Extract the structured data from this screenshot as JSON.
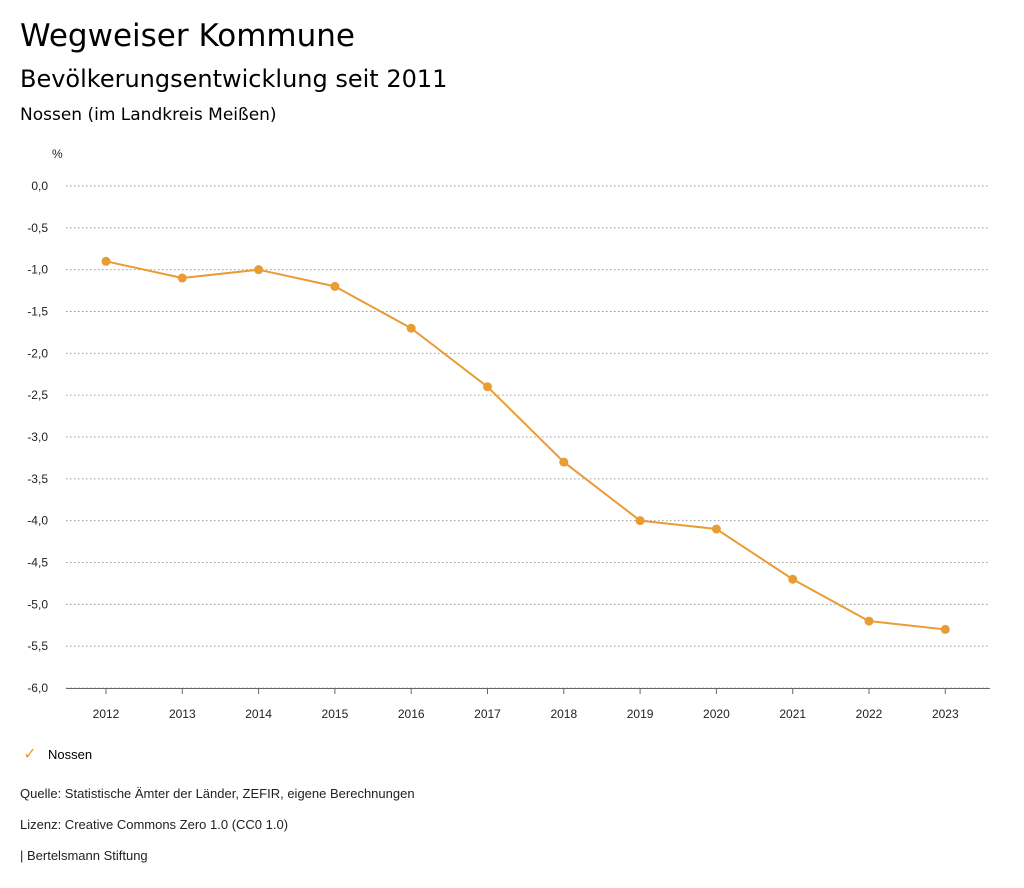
{
  "header": {
    "title": "Wegweiser Kommune",
    "subtitle": "Bevölkerungsentwicklung seit 2011",
    "region": "Nossen (im Landkreis Meißen)"
  },
  "chart_data": {
    "type": "line",
    "ylabel": "%",
    "ylim": [
      -6.0,
      0.0
    ],
    "yticks": [
      0.0,
      -0.5,
      -1.0,
      -1.5,
      -2.0,
      -2.5,
      -3.0,
      -3.5,
      -4.0,
      -4.5,
      -5.0,
      -5.5,
      -6.0
    ],
    "ytick_labels": [
      "0,0",
      "-0,5",
      "-1,0",
      "-1,5",
      "-2,0",
      "-2,5",
      "-3,0",
      "-3,5",
      "-4,0",
      "-4,5",
      "-5,0",
      "-5,5",
      "-6,0"
    ],
    "categories": [
      "2012",
      "2013",
      "2014",
      "2015",
      "2016",
      "2017",
      "2018",
      "2019",
      "2020",
      "2021",
      "2022",
      "2023"
    ],
    "grid": true,
    "series": [
      {
        "name": "Nossen",
        "color": "#E99B34",
        "values": [
          -0.9,
          -1.1,
          -1.0,
          -1.2,
          -1.7,
          -2.4,
          -3.3,
          -4.0,
          -4.1,
          -4.7,
          -5.2,
          -5.3
        ]
      }
    ]
  },
  "legend": {
    "marker_icon": "check-icon",
    "label": "Nossen"
  },
  "footer": {
    "source": "Quelle: Statistische Ämter der Länder, ZEFIR, eigene Berechnungen",
    "license": "Lizenz: Creative Commons Zero 1.0 (CC0 1.0)",
    "publisher": "| Bertelsmann Stiftung"
  }
}
